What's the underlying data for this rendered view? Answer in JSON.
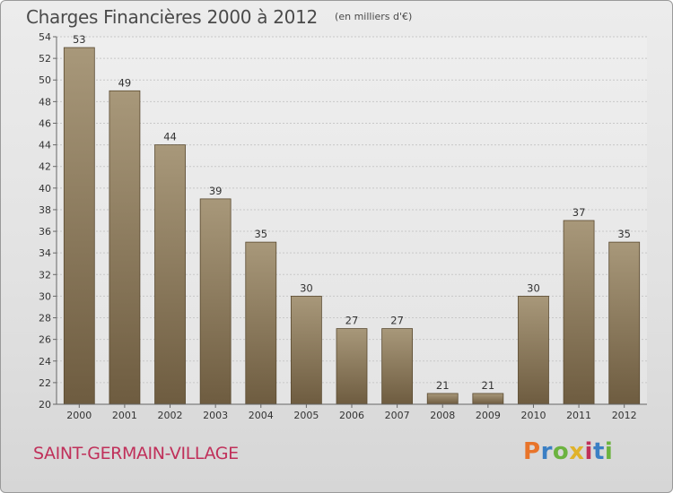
{
  "header": {
    "title": "Charges Financières 2000 à 2012",
    "subtitle": "(en milliers d'€)"
  },
  "footer": {
    "commune": "SAINT-GERMAIN-VILLAGE",
    "logo_text": "Proxiti",
    "logo_colors": [
      "#e8742a",
      "#3a7fc4",
      "#6cb33f",
      "#e0b22a",
      "#c0305a",
      "#3a7fc4",
      "#6cb33f"
    ]
  },
  "colors": {
    "bar_light": "#a8987a",
    "bar_dark": "#6e5c40",
    "bar_edge": "#5a4a30",
    "commune": "#c0305a"
  },
  "chart_data": {
    "type": "bar",
    "title": "Charges Financières 2000 à 2012",
    "subtitle": "(en milliers d'€)",
    "categories": [
      "2000",
      "2001",
      "2002",
      "2003",
      "2004",
      "2005",
      "2006",
      "2007",
      "2008",
      "2009",
      "2010",
      "2011",
      "2012"
    ],
    "values": [
      53,
      49,
      44,
      39,
      35,
      30,
      27,
      27,
      21,
      21,
      30,
      37,
      35
    ],
    "ylim": [
      20,
      54
    ],
    "yticks": [
      20,
      22,
      24,
      26,
      28,
      30,
      32,
      34,
      36,
      38,
      40,
      42,
      44,
      46,
      48,
      50,
      52,
      54
    ],
    "grid": true,
    "legend": "none"
  }
}
